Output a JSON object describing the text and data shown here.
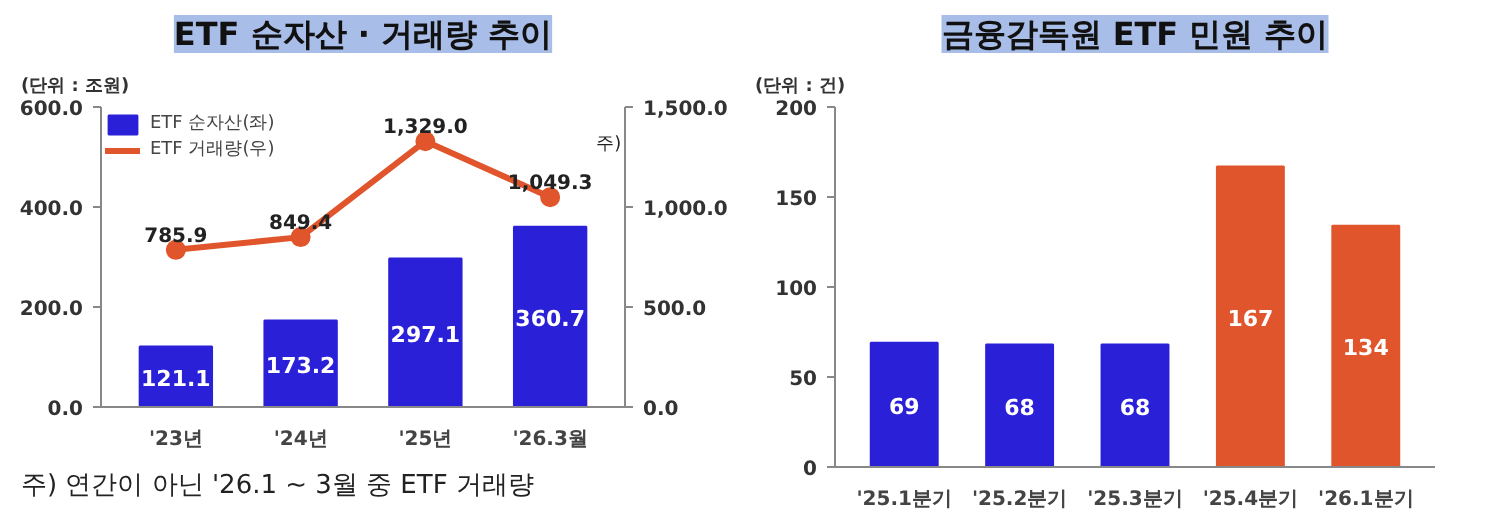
{
  "chart_data": [
    {
      "type": "bar",
      "title": "ETF 순자산 · 거래량 추이",
      "ylabel": "(단위 : 조원)",
      "categories": [
        "'23년",
        "'24년",
        "'25년",
        "'26.3월"
      ],
      "series": [
        {
          "name": "ETF 순자산(좌)",
          "color": "#2a20d8",
          "values": [
            121.1,
            173.2,
            297.1,
            360.7
          ],
          "value_labels": [
            "121.1",
            "173.2",
            "297.1",
            "360.7"
          ]
        },
        {
          "name": "ETF 거래량(우)",
          "type": "line",
          "axis": "y2",
          "color": "#e0552b",
          "values": [
            785.9,
            849.4,
            1329.0,
            1049.3
          ],
          "value_labels": [
            "785.9",
            "849.4",
            "1,329.0",
            "1,049.3"
          ]
        }
      ],
      "ylim": [
        0,
        600
      ],
      "yticks": [
        {
          "value": 0,
          "label": "0.0"
        },
        {
          "value": 200,
          "label": "200.0"
        },
        {
          "value": 400,
          "label": "400.0"
        },
        {
          "value": 600,
          "label": "600.0"
        }
      ],
      "y2lim": [
        0,
        1500
      ],
      "y2ticks": [
        {
          "value": 0,
          "label": "0.0"
        },
        {
          "value": 500,
          "label": "500.0"
        },
        {
          "value": 1000,
          "label": "1,000.0"
        },
        {
          "value": 1500,
          "label": "1,500.0"
        }
      ],
      "legend": "top left",
      "marker": "circle",
      "annotations": [
        "주)",
        "주) 연간이 아닌 '26.1 ~ 3월 중 ETF 거래량"
      ]
    },
    {
      "type": "bar",
      "title": "금융감독원 ETF 민원 추이",
      "ylabel": "(단위 : 건)",
      "categories": [
        "'25.1분기",
        "'25.2분기",
        "'25.3분기",
        "'25.4분기",
        "'26.1분기"
      ],
      "values": [
        69,
        68,
        68,
        167,
        134
      ],
      "colors": [
        "#2a20d8",
        "#2a20d8",
        "#2a20d8",
        "#e0552b",
        "#e0552b"
      ],
      "ylim": [
        0,
        200
      ],
      "yticks": [
        0,
        50,
        100,
        150,
        200
      ],
      "data_labels": true
    }
  ]
}
